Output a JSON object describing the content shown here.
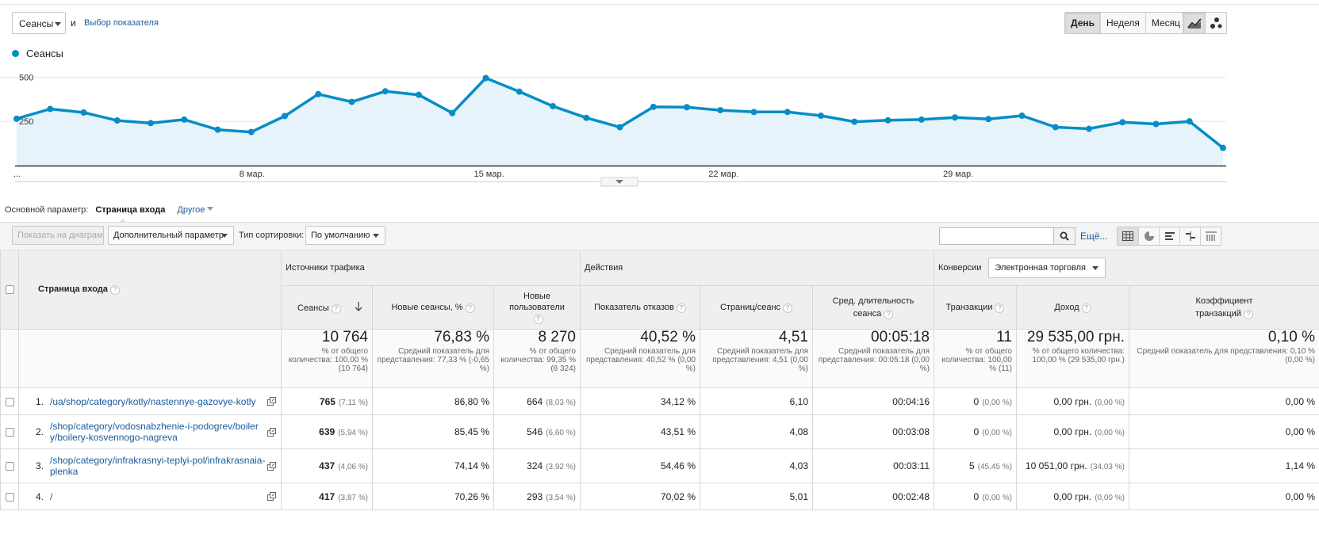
{
  "controls": {
    "metric_select": "Сеансы",
    "conjunction": "и",
    "pick_metric": "Выбор показателя",
    "periods": [
      "День",
      "Неделя",
      "Месяц"
    ],
    "active_period": "День",
    "chart_type_icons": [
      "line-chart-icon",
      "motion-chart-icon"
    ]
  },
  "chart_data": {
    "type": "area",
    "series": [
      {
        "name": "Сеансы",
        "color": "#058dc7",
        "values": [
          265,
          320,
          300,
          255,
          240,
          260,
          203,
          190,
          280,
          404,
          360,
          420,
          400,
          297,
          495,
          418,
          336,
          270,
          217,
          332,
          330,
          313,
          303,
          303,
          282,
          248,
          256,
          260,
          272,
          263,
          282,
          217,
          208,
          245,
          235,
          250,
          100
        ]
      }
    ],
    "ylim": [
      0,
      600
    ],
    "yticks": [
      {
        "value": 250,
        "label": "250"
      },
      {
        "value": 500,
        "label": "500"
      }
    ],
    "xticks": [
      {
        "index": 0,
        "label": "..."
      },
      {
        "index": 7,
        "label": "8 мар."
      },
      {
        "index": 14,
        "label": "15 мар."
      },
      {
        "index": 21,
        "label": "22 мар."
      },
      {
        "index": 28,
        "label": "29 мар."
      }
    ]
  },
  "dimension": {
    "label": "Основной параметр:",
    "primary": "Страница входа",
    "other": "Другое"
  },
  "toolbar": {
    "plot_rows": "Показать на диаграмме",
    "secondary_dim": "Дополнительный параметр",
    "sort_label": "Тип сортировки:",
    "sort_value": "По умолчанию",
    "search_placeholder": "",
    "more": "Ещё..."
  },
  "table": {
    "page_header": "Страница входа",
    "groups": {
      "acquisition": "Источники трафика",
      "behavior": "Действия",
      "conversions": "Конверсии",
      "conversions_select": "Электронная торговля"
    },
    "columns": {
      "sessions": "Сеансы",
      "new_sessions": "Новые сеансы, %",
      "new_users": "Новые пользователи",
      "bounce": "Показатель отказов",
      "pages": "Страниц/сеанс",
      "duration": "Сред. длительность сеанса",
      "transactions": "Транзакции",
      "revenue": "Доход",
      "conv_rate": "Коэффициент транзакций"
    },
    "totals": {
      "sessions": {
        "value": "10 764",
        "sub": "% от общего количества: 100,00 % (10 764)"
      },
      "new_sessions": {
        "value": "76,83 %",
        "sub": "Средний показатель для представления: 77,33 % (-0,65 %)"
      },
      "new_users": {
        "value": "8 270",
        "sub": "% от общего количества: 99,35 % (8 324)"
      },
      "bounce": {
        "value": "40,52 %",
        "sub": "Средний показатель для представления: 40,52 % (0,00 %)"
      },
      "pages": {
        "value": "4,51",
        "sub": "Средний показатель для представления: 4,51 (0,00 %)"
      },
      "duration": {
        "value": "00:05:18",
        "sub": "Средний показатель для представления: 00:05:18 (0,00 %)"
      },
      "transactions": {
        "value": "11",
        "sub": "% от общего количества: 100,00 % (11)"
      },
      "revenue": {
        "value": "29 535,00 грн.",
        "sub": "% от общего количества: 100,00 % (29 535,00 грн.)"
      },
      "conv_rate": {
        "value": "0,10 %",
        "sub": "Средний показатель для представления: 0,10 % (0,00 %)"
      }
    },
    "rows": [
      {
        "n": "1.",
        "page": "/ua/shop/category/kotly/nastennye-gazovye-kotly",
        "sessions": "765",
        "sessions_pct": "(7,11 %)",
        "new_sessions": "86,80 %",
        "new_users": "664",
        "new_users_pct": "(8,03 %)",
        "bounce": "34,12 %",
        "pages": "6,10",
        "duration": "00:04:16",
        "transactions": "0",
        "transactions_pct": "(0,00 %)",
        "revenue": "0,00 грн.",
        "revenue_pct": "(0,00 %)",
        "conv_rate": "0,00 %"
      },
      {
        "n": "2.",
        "page": "/shop/category/vodosnabzhenie-i-podogrev/boilery/boilery-kosvennogo-nagreva",
        "sessions": "639",
        "sessions_pct": "(5,94 %)",
        "new_sessions": "85,45 %",
        "new_users": "546",
        "new_users_pct": "(6,60 %)",
        "bounce": "43,51 %",
        "pages": "4,08",
        "duration": "00:03:08",
        "transactions": "0",
        "transactions_pct": "(0,00 %)",
        "revenue": "0,00 грн.",
        "revenue_pct": "(0,00 %)",
        "conv_rate": "0,00 %"
      },
      {
        "n": "3.",
        "page": "/shop/category/infrakrasnyi-teplyi-pol/infrakrasnaia-plenka",
        "sessions": "437",
        "sessions_pct": "(4,06 %)",
        "new_sessions": "74,14 %",
        "new_users": "324",
        "new_users_pct": "(3,92 %)",
        "bounce": "54,46 %",
        "pages": "4,03",
        "duration": "00:03:11",
        "transactions": "5",
        "transactions_pct": "(45,45 %)",
        "revenue": "10 051,00 грн.",
        "revenue_pct": "(34,03 %)",
        "conv_rate": "1,14 %"
      },
      {
        "n": "4.",
        "page": "/",
        "sessions": "417",
        "sessions_pct": "(3,87 %)",
        "new_sessions": "70,26 %",
        "new_users": "293",
        "new_users_pct": "(3,54 %)",
        "bounce": "70,02 %",
        "pages": "5,01",
        "duration": "00:02:48",
        "transactions": "0",
        "transactions_pct": "(0,00 %)",
        "revenue": "0,00 грн.",
        "revenue_pct": "(0,00 %)",
        "conv_rate": "0,00 %"
      }
    ]
  }
}
